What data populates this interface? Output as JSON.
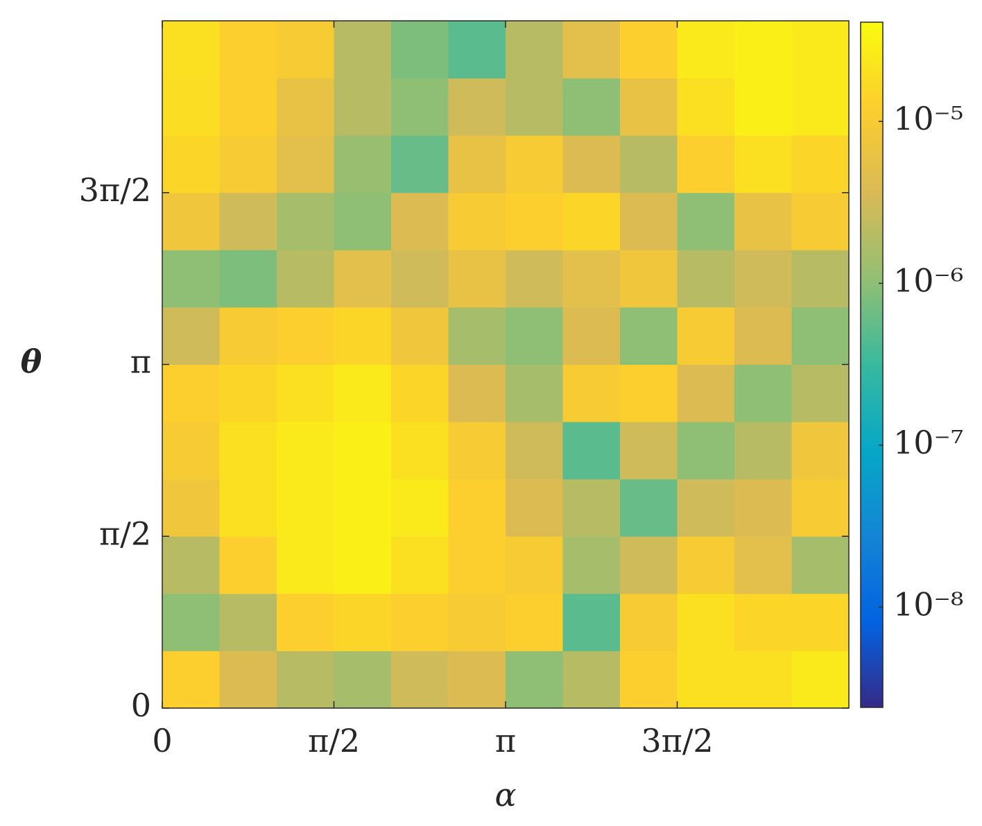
{
  "chart_data": {
    "type": "heatmap",
    "x_label": "α",
    "y_label": "θ",
    "xlim": [
      0,
      6.2832
    ],
    "ylim": [
      0,
      6.2832
    ],
    "xticks": [
      0,
      {
        "value": 1.5708,
        "label": "π/2"
      },
      {
        "value": 3.1416,
        "label": "π"
      },
      {
        "value": 4.7124,
        "label": "3π/2"
      }
    ],
    "yticks": [
      0,
      {
        "value": 1.5708,
        "label": "π/2"
      },
      {
        "value": 3.1416,
        "label": "π"
      },
      {
        "value": 4.7124,
        "label": "3π/2"
      }
    ],
    "colormap": "parula",
    "color_scale": "log",
    "clim": [
      2.4e-09,
      4.1e-05
    ],
    "cticks": [
      {
        "value": 1e-08,
        "label": "10⁻⁸"
      },
      {
        "value": 1e-07,
        "label": "10⁻⁷"
      },
      {
        "value": 1e-06,
        "label": "10⁻⁶"
      },
      {
        "value": 1e-05,
        "label": "10⁻⁵"
      }
    ],
    "z": [
      [
        1.2e-05,
        4e-06,
        2e-06,
        1.5e-06,
        3e-06,
        4e-06,
        1e-06,
        2e-06,
        1.2e-05,
        2e-05,
        2e-05,
        2.5e-05
      ],
      [
        1e-06,
        2e-06,
        1.2e-05,
        1.5e-05,
        1.2e-05,
        1e-05,
        1.2e-05,
        5e-07,
        1e-05,
        2e-05,
        1.5e-05,
        1.5e-05
      ],
      [
        2e-06,
        1.2e-05,
        2.5e-05,
        3e-05,
        2e-05,
        1.2e-05,
        1e-05,
        1.5e-06,
        3e-06,
        1e-05,
        5e-06,
        1.5e-06
      ],
      [
        8e-06,
        2e-05,
        2.5e-05,
        3e-05,
        2.5e-05,
        1.2e-05,
        4e-06,
        2e-06,
        6e-07,
        3e-06,
        4e-06,
        1e-05
      ],
      [
        1e-05,
        2e-05,
        2.5e-05,
        3e-05,
        2e-05,
        1e-05,
        3e-06,
        5e-07,
        3e-06,
        1e-06,
        2e-06,
        8e-06
      ],
      [
        1.2e-05,
        1.5e-05,
        2e-05,
        2.5e-05,
        1.5e-05,
        4e-06,
        1.5e-06,
        1e-05,
        1.2e-05,
        4e-06,
        1e-06,
        2e-06
      ],
      [
        3e-06,
        1e-05,
        1.2e-05,
        1.5e-05,
        8e-06,
        1.5e-06,
        1e-06,
        4e-06,
        1e-06,
        1e-05,
        4e-06,
        1e-06
      ],
      [
        1e-06,
        8e-07,
        2e-06,
        5e-06,
        3e-06,
        6e-06,
        3e-06,
        5e-06,
        8e-06,
        2e-06,
        3e-06,
        2e-06
      ],
      [
        8e-06,
        3e-06,
        1.5e-06,
        1e-06,
        4e-06,
        1e-05,
        1.2e-05,
        1.5e-05,
        4e-06,
        1e-06,
        6e-06,
        1e-05
      ],
      [
        1.5e-05,
        1e-05,
        5e-06,
        1.2e-06,
        6e-07,
        6e-06,
        1e-05,
        4e-06,
        2e-06,
        1.2e-05,
        2e-05,
        1.5e-05
      ],
      [
        1.8e-05,
        1.2e-05,
        6e-06,
        2e-06,
        1e-06,
        3e-06,
        2e-06,
        1e-06,
        6e-06,
        2e-05,
        3e-05,
        2.5e-05
      ],
      [
        2e-05,
        1.2e-05,
        1e-05,
        2e-06,
        8e-07,
        5e-07,
        2e-06,
        5e-06,
        1.2e-05,
        2.5e-05,
        3e-05,
        2.5e-05
      ]
    ]
  }
}
